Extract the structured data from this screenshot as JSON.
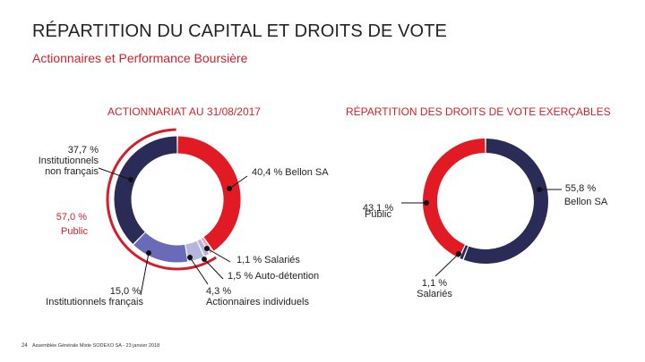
{
  "header": {
    "title": "RÉPARTITION DU CAPITAL ET DROITS DE VOTE",
    "subtitle": "Actionnaires et Performance Boursière"
  },
  "footer": {
    "page_number": "24",
    "text": "Assemblée Générale Mixte SODEXO SA - 23 janvier 2018"
  },
  "colors": {
    "red": "#e11a23",
    "navy": "#2b2b57",
    "purple": "#6a6ab8",
    "lavender": "#b6b6dc",
    "pink": "#f1a9ae",
    "accent_red": "#d21f2b"
  },
  "chart_data": [
    {
      "type": "pie",
      "title": "ACTIONNARIAT AU 31/08/2017",
      "slices": [
        {
          "name": "Bellon SA",
          "value": 40.4,
          "label": "40,4 %",
          "text": "Bellon SA",
          "color": "red"
        },
        {
          "name": "Salariés",
          "value": 1.1,
          "label": "1,1 %",
          "text": "Salariés",
          "color": "pink"
        },
        {
          "name": "Auto-détention",
          "value": 1.5,
          "label": "1,5 %",
          "text": "Auto-détention",
          "color": "lavender"
        },
        {
          "name": "Actionnaires individuels",
          "value": 4.3,
          "label": "4,3 %",
          "text": "Actionnaires individuels",
          "color": "lavender"
        },
        {
          "name": "Institutionnels français",
          "value": 15.0,
          "label": "15,0 %",
          "text": "Institutionnels français",
          "color": "purple"
        },
        {
          "name": "Institutionnels non français",
          "value": 37.7,
          "label": "37,7 %",
          "text_lines": [
            "Institutionnels",
            "non français"
          ],
          "color": "navy"
        }
      ],
      "group": {
        "label": "57,0 %",
        "text": "Public",
        "value": 57.0
      }
    },
    {
      "type": "pie",
      "title": "RÉPARTITION DES DROITS DE VOTE EXERÇABLES",
      "slices": [
        {
          "name": "Bellon SA",
          "value": 55.8,
          "label": "55,8 %",
          "text": "Bellon SA",
          "color": "navy"
        },
        {
          "name": "Salariés",
          "value": 1.1,
          "label": "1,1 %",
          "text": "Salariés",
          "color": "navy"
        },
        {
          "name": "Public",
          "value": 43.1,
          "label": "43,1 %",
          "text": "Public",
          "color": "red"
        }
      ]
    }
  ]
}
